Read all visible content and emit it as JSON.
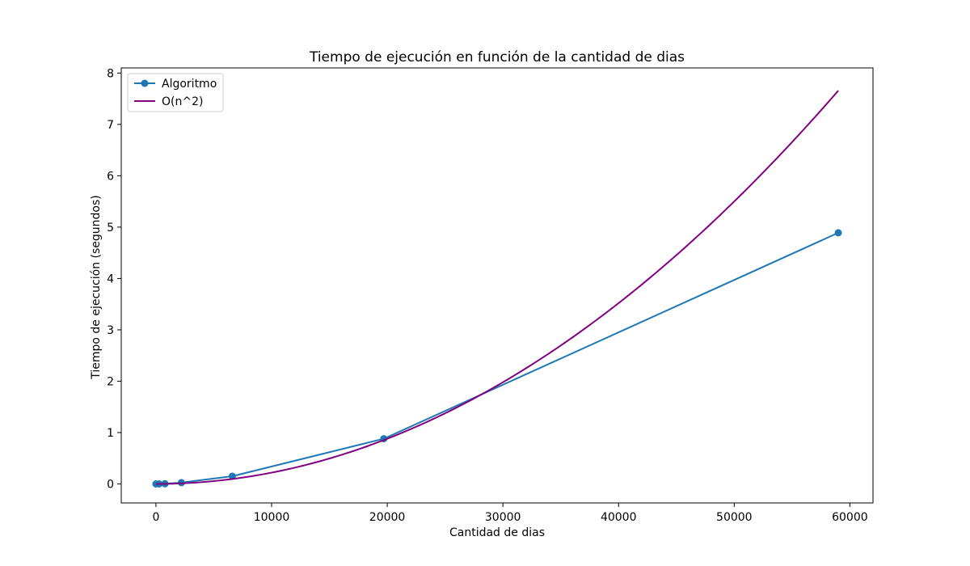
{
  "chart_data": {
    "type": "line",
    "title": "Tiempo de ejecución en función de la cantidad de dias",
    "xlabel": "Cantidad de dias",
    "ylabel": "Tiempo de ejecución (segundos)",
    "xlim": [
      -3000,
      62000
    ],
    "ylim": [
      -0.37,
      8.1
    ],
    "xticks": [
      0,
      10000,
      20000,
      30000,
      40000,
      50000,
      60000
    ],
    "xtick_labels": [
      "0",
      "10000",
      "20000",
      "30000",
      "40000",
      "50000",
      "60000"
    ],
    "yticks": [
      0,
      1,
      2,
      3,
      4,
      5,
      6,
      7,
      8
    ],
    "ytick_labels": [
      "0",
      "1",
      "2",
      "3",
      "4",
      "5",
      "6",
      "7",
      "8"
    ],
    "grid": false,
    "legend_position": "top-left",
    "series": [
      {
        "name": "Algoritmo",
        "color": "#1f77b4",
        "marker": "circle",
        "x": [
          0,
          270,
          780,
          2200,
          6600,
          19700,
          59000
        ],
        "y": [
          0.0,
          0.0,
          0.003,
          0.025,
          0.15,
          0.88,
          4.89
        ]
      },
      {
        "name": "O(n^2)",
        "color": "#800080",
        "marker": "none",
        "function": "quadratic",
        "coefficient": 2.2e-09,
        "x_range": [
          0,
          59000
        ]
      }
    ]
  }
}
